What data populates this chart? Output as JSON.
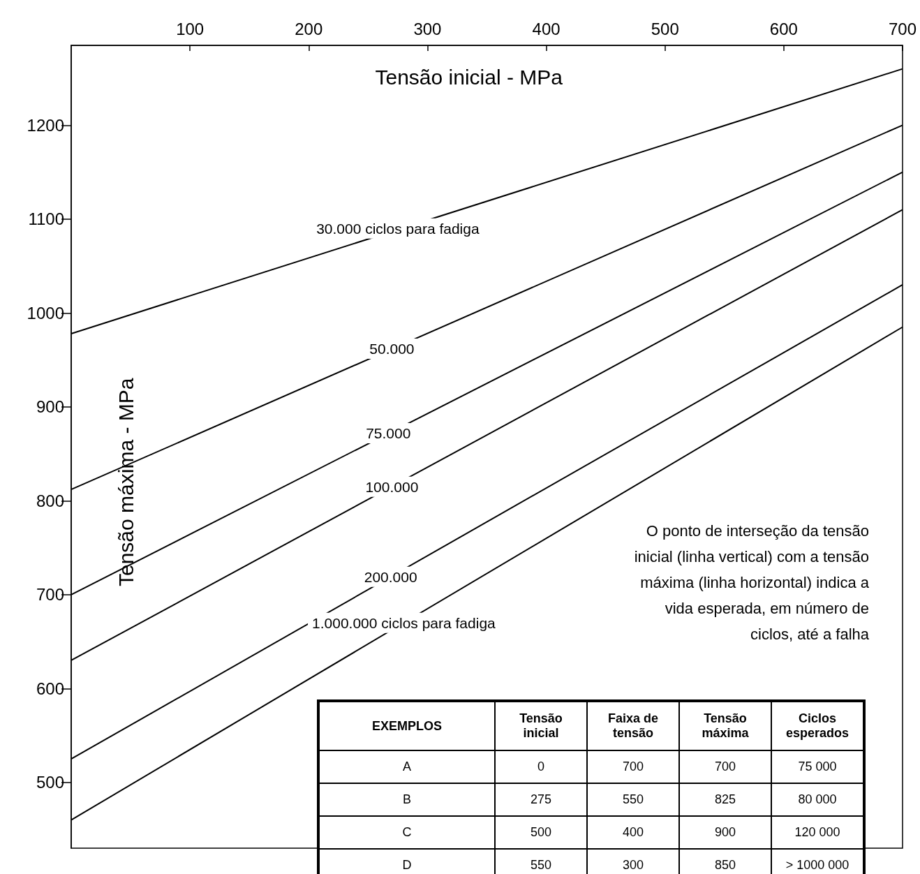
{
  "chart_data": [
    {
      "type": "line",
      "xlabel": "Tensão inicial - MPa",
      "ylabel": "Tensão máxima - MPa",
      "x": [
        0,
        700
      ],
      "series": [
        {
          "color": "#000000",
          "values": [
            978,
            1260
          ]
        },
        {
          "color": "#000000",
          "values": [
            812,
            1200
          ]
        },
        {
          "color": "#000000",
          "values": [
            700,
            1150
          ]
        },
        {
          "color": "#000000",
          "values": [
            630,
            1110
          ]
        },
        {
          "color": "#000000",
          "values": [
            525,
            1030
          ]
        },
        {
          "color": "#000000",
          "values": [
            460,
            985
          ]
        }
      ],
      "xlim": [
        0,
        700
      ],
      "xticks": [
        100,
        200,
        300,
        400,
        500,
        600,
        700
      ],
      "ylim": [
        430,
        1285
      ],
      "yticks": [
        500,
        600,
        700,
        800,
        900,
        1000,
        1100,
        1200
      ],
      "grid": false,
      "marker": "none",
      "line_style": "solid",
      "annotations": [
        "O ponto de interseção da tensão inicial (linha vertical) com a tensão máxima (linha horizontal) indica a vida esperada, em número de ciclos, até a falha",
        {
          "text": "30.000 ciclos para fadiga",
          "x": 275,
          "y": 1090
        },
        {
          "text": "50.000",
          "x": 270,
          "y": 962
        },
        {
          "text": "75.000",
          "x": 267,
          "y": 872
        },
        {
          "text": "100.000",
          "x": 270,
          "y": 815
        },
        {
          "text": "200.000",
          "x": 269,
          "y": 719
        },
        {
          "text": "1.000.000 ciclos para fadiga",
          "x": 280,
          "y": 670
        }
      ]
    },
    {
      "type": "other",
      "categories": [
        "EXEMPLOS",
        "Tensão inicial",
        "Faixa de tensão",
        "Tensão máxima",
        "Ciclos esperados"
      ],
      "cell_labels": [
        [
          "A",
          "0",
          "700",
          "700",
          "75 000"
        ],
        [
          "B",
          "275",
          "550",
          "825",
          "80 000"
        ],
        [
          "C",
          "500",
          "400",
          "900",
          "120 000"
        ],
        [
          "D",
          "550",
          "300",
          "850",
          "> 1000 000"
        ]
      ]
    }
  ]
}
